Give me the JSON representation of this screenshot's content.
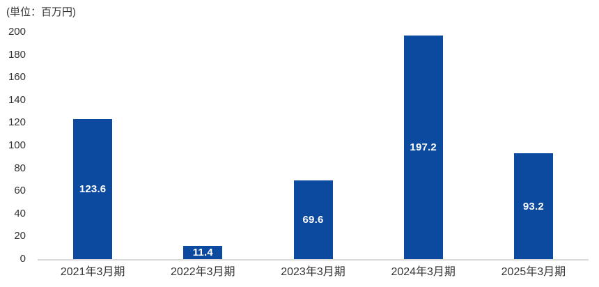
{
  "unit_label": "(単位：百万円)",
  "chart_data": {
    "type": "bar",
    "title": "",
    "unit_label": "(単位：百万円)",
    "categories": [
      "2021年3月期",
      "2022年3月期",
      "2023年3月期",
      "2024年3月期",
      "2025年3月期"
    ],
    "values": [
      123.6,
      11.4,
      69.6,
      197.2,
      93.2
    ],
    "value_labels": [
      "123.6",
      "11.4",
      "69.6",
      "197.2",
      "93.2"
    ],
    "xlabel": "",
    "ylabel": "",
    "ylim": [
      0,
      200
    ],
    "yticks": [
      0,
      20,
      40,
      60,
      80,
      100,
      120,
      140,
      160,
      180,
      200
    ],
    "grid": false,
    "legend": false,
    "colors": {
      "bar": "#0B4A9E",
      "bar_value_label": "#FFFFFF",
      "axis_line": "#D9D9D9",
      "tick_text": "#333333"
    }
  }
}
